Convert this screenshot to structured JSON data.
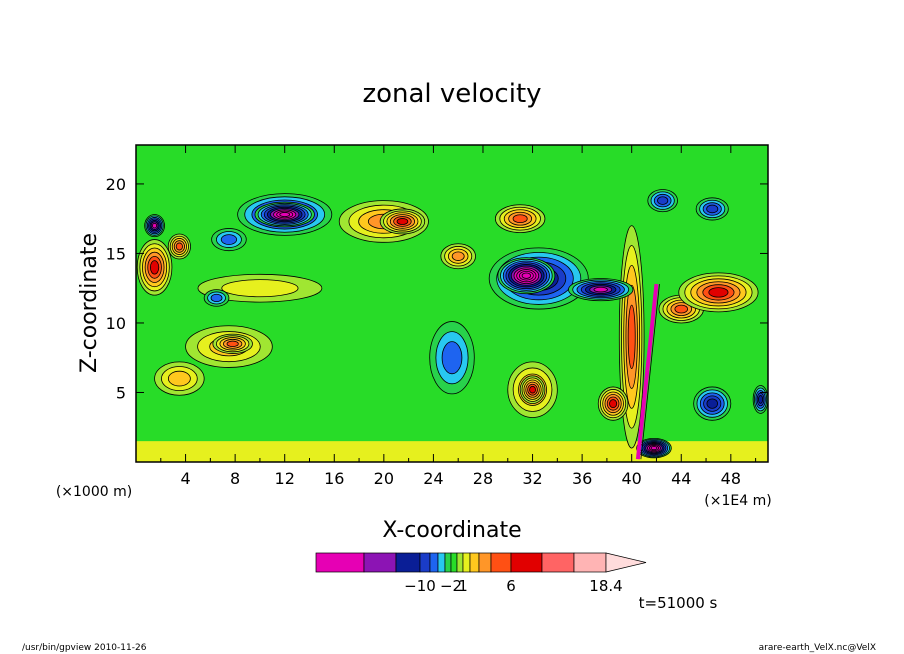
{
  "chart_data": {
    "type": "heatmap",
    "title": "zonal velocity",
    "xlabel": "X-coordinate",
    "ylabel": "Z-coordinate",
    "x_unit_left": "(×1000 m)",
    "x_unit_right": "(×1E4 m)",
    "xlim": [
      0,
      51
    ],
    "ylim": [
      0,
      22.8
    ],
    "x_ticks": [
      4,
      8,
      12,
      16,
      20,
      24,
      28,
      32,
      36,
      40,
      44,
      48
    ],
    "x_tick_labels": [
      "4",
      "8",
      "12",
      "16",
      "20",
      "24",
      "28",
      "32",
      "36",
      "40",
      "44",
      "48"
    ],
    "y_ticks": [
      5,
      10,
      15,
      20
    ],
    "y_tick_labels": [
      "5",
      "10",
      "15",
      "20"
    ],
    "grid": false,
    "background_level": 0,
    "features": [
      {
        "x": 12,
        "z": 17.8,
        "rx": 3.8,
        "rz": 1.5,
        "level": -6
      },
      {
        "x": 12,
        "z": 17.8,
        "rx": 2.4,
        "rz": 0.9,
        "level": -9
      },
      {
        "x": 7.5,
        "z": 16.0,
        "rx": 1.4,
        "rz": 0.8,
        "level": -3
      },
      {
        "x": 1.5,
        "z": 17.0,
        "rx": 0.8,
        "rz": 0.8,
        "level": -7
      },
      {
        "x": 32.5,
        "z": 13.2,
        "rx": 4.0,
        "rz": 2.2,
        "level": -6
      },
      {
        "x": 31.5,
        "z": 13.4,
        "rx": 2.3,
        "rz": 1.3,
        "level": -10
      },
      {
        "x": 37.5,
        "z": 12.4,
        "rx": 2.6,
        "rz": 0.8,
        "level": -7
      },
      {
        "x": 25.5,
        "z": 7.5,
        "rx": 1.8,
        "rz": 2.6,
        "level": -3
      },
      {
        "x": 46.5,
        "z": 4.2,
        "rx": 1.5,
        "rz": 1.2,
        "level": -5
      },
      {
        "x": 41.8,
        "z": 1.0,
        "rx": 1.4,
        "rz": 0.7,
        "level": -9
      },
      {
        "x": 6.5,
        "z": 11.8,
        "rx": 1.0,
        "rz": 0.6,
        "level": -3
      },
      {
        "x": 42.5,
        "z": 18.8,
        "rx": 1.2,
        "rz": 0.8,
        "level": -4
      },
      {
        "x": 46.5,
        "z": 18.2,
        "rx": 1.3,
        "rz": 0.8,
        "level": -4
      },
      {
        "x": 50.4,
        "z": 4.5,
        "rx": 0.6,
        "rz": 1.0,
        "level": -5
      },
      {
        "x": 20.0,
        "z": 17.3,
        "rx": 3.6,
        "rz": 1.5,
        "level": 4
      },
      {
        "x": 21.5,
        "z": 17.3,
        "rx": 1.8,
        "rz": 0.9,
        "level": 6
      },
      {
        "x": 31.0,
        "z": 17.5,
        "rx": 2.0,
        "rz": 1.0,
        "level": 5
      },
      {
        "x": 1.5,
        "z": 14.0,
        "rx": 1.4,
        "rz": 2.0,
        "level": 6
      },
      {
        "x": 3.5,
        "z": 15.5,
        "rx": 0.9,
        "rz": 0.9,
        "level": 5
      },
      {
        "x": 47.0,
        "z": 12.2,
        "rx": 3.2,
        "rz": 1.4,
        "level": 6
      },
      {
        "x": 44.0,
        "z": 11.0,
        "rx": 1.8,
        "rz": 1.0,
        "level": 5
      },
      {
        "x": 32.0,
        "z": 5.2,
        "rx": 2.0,
        "rz": 2.0,
        "level": 4
      },
      {
        "x": 32.0,
        "z": 5.2,
        "rx": 1.0,
        "rz": 1.0,
        "level": 6
      },
      {
        "x": 7.5,
        "z": 8.3,
        "rx": 3.5,
        "rz": 1.5,
        "level": 3
      },
      {
        "x": 7.8,
        "z": 8.5,
        "rx": 1.6,
        "rz": 0.7,
        "level": 5
      },
      {
        "x": 3.5,
        "z": 6.0,
        "rx": 2.0,
        "rz": 1.2,
        "level": 3
      },
      {
        "x": 38.5,
        "z": 4.2,
        "rx": 1.2,
        "rz": 1.2,
        "level": 6
      },
      {
        "x": 26.0,
        "z": 14.8,
        "rx": 1.4,
        "rz": 0.9,
        "level": 4
      },
      {
        "x": 10.0,
        "z": 12.5,
        "rx": 5.0,
        "rz": 1.0,
        "level": 2
      },
      {
        "x": 40.0,
        "z": 9.0,
        "rx": 1.0,
        "rz": 8.0,
        "level": 5
      }
    ],
    "line_features": [
      {
        "x0": 40.5,
        "z0": 0.2,
        "x1": 42.0,
        "z1": 12.8,
        "level": -10
      }
    ]
  },
  "colorbar": {
    "labels": [
      {
        "level_index": 3,
        "text": "−10"
      },
      {
        "level_index": 7,
        "text": "−2"
      },
      {
        "level_index": 9,
        "text": "1"
      },
      {
        "level_index": 13,
        "text": "6"
      },
      {
        "level_index": 19,
        "text": "18.4"
      }
    ],
    "colors": [
      "#e600b4",
      "#8c14b4",
      "#0a1e96",
      "#1a3cc8",
      "#1e64f0",
      "#28c8f0",
      "#28d24b",
      "#28dc28",
      "#a0e632",
      "#e6f01e",
      "#ffc81e",
      "#ff9628",
      "#ff5014",
      "#e10000",
      "#ff6464",
      "#ffb4b4",
      "#ffdcdc"
    ]
  },
  "time_label": "t=51000 s",
  "footer_left": "/usr/bin/gpview  2010-11-26",
  "footer_right": "arare-earth_VelX.nc@VelX"
}
